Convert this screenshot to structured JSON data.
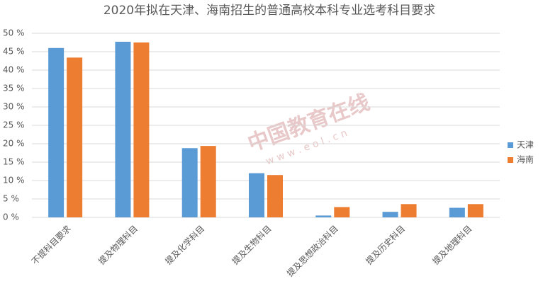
{
  "chart_data": {
    "type": "bar",
    "title": "2020年拟在天津、海南招生的普通高校本科专业选考科目要求",
    "categories": [
      "不提科目要求",
      "提及物理科目",
      "提及化学科目",
      "提及生物科目",
      "提及思想政治科目",
      "提及历史科目",
      "提及地理科目"
    ],
    "series": [
      {
        "name": "天津",
        "color": "#5b9bd5",
        "values": [
          46,
          47.7,
          18.8,
          12,
          0.5,
          1.5,
          2.6
        ]
      },
      {
        "name": "海南",
        "color": "#ed7d31",
        "values": [
          43.4,
          47.5,
          19.4,
          11.5,
          2.8,
          3.6,
          3.6
        ]
      }
    ],
    "ylim": [
      0,
      50
    ],
    "yticks": [
      {
        "value": 0,
        "label": "0 %"
      },
      {
        "value": 5,
        "label": "5 %"
      },
      {
        "value": 10,
        "label": "10 %"
      },
      {
        "value": 15,
        "label": "15 %"
      },
      {
        "value": 20,
        "label": "20 %"
      },
      {
        "value": 25,
        "label": "25 %"
      },
      {
        "value": 30,
        "label": "30 %"
      },
      {
        "value": 35,
        "label": "35 %"
      },
      {
        "value": 40,
        "label": "40 %"
      },
      {
        "value": 45,
        "label": "45 %"
      },
      {
        "value": 50,
        "label": "50 %"
      }
    ],
    "grid": true,
    "legend": "right"
  },
  "watermark": {
    "brand": "中国教育在线",
    "url": "w w w . e o l . c n"
  }
}
